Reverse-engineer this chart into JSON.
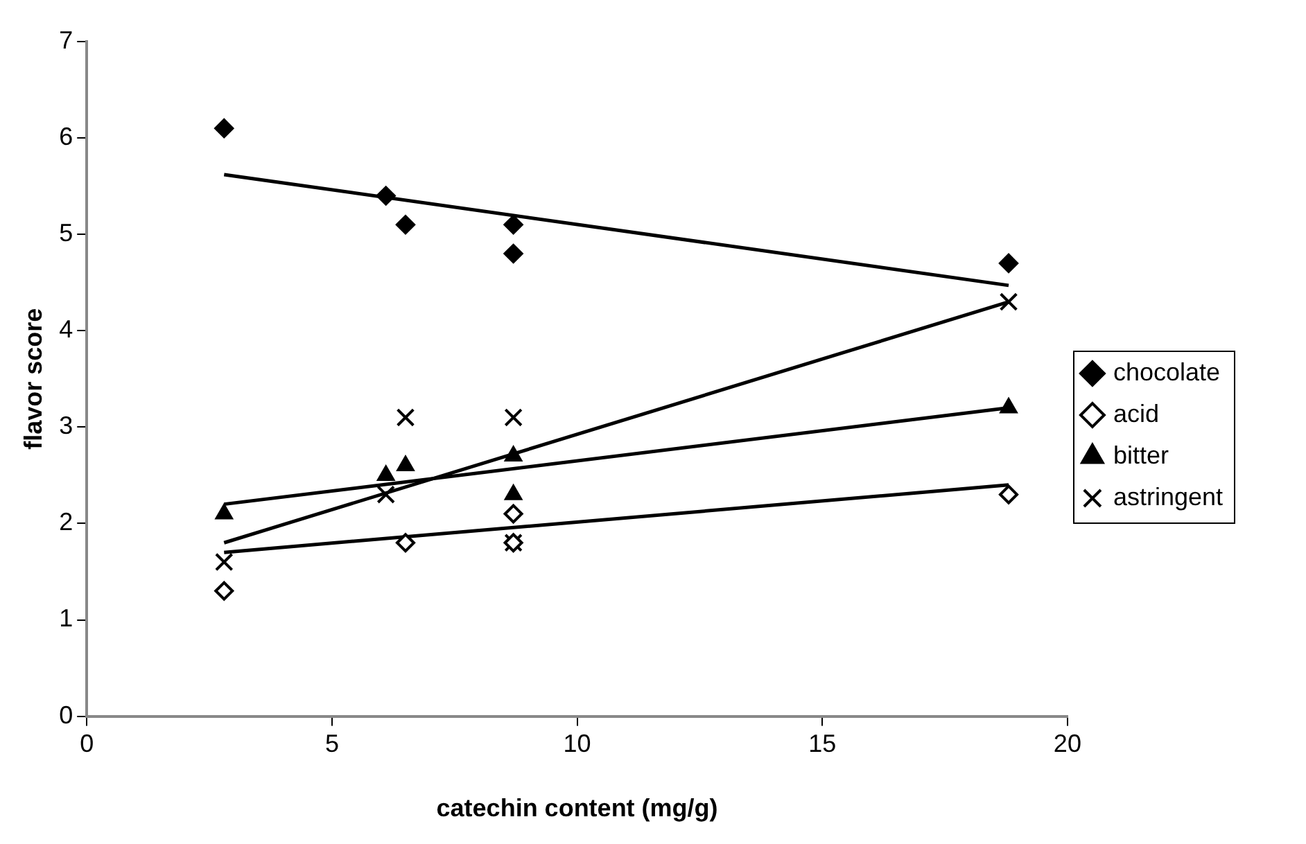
{
  "chart_data": {
    "type": "scatter",
    "xlabel": "catechin content (mg/g)",
    "ylabel": "flavor score",
    "xlim": [
      0,
      20
    ],
    "xticks": [
      0,
      5,
      10,
      15,
      20
    ],
    "ylim": [
      0,
      7
    ],
    "yticks": [
      0,
      1,
      2,
      3,
      4,
      5,
      6,
      7
    ],
    "legend": "right",
    "series": [
      {
        "name": "chocolate",
        "color": "#000000",
        "marker": "diamond",
        "x": [
          2.8,
          6.1,
          6.5,
          8.7,
          8.7,
          18.8
        ],
        "values": [
          6.1,
          5.4,
          5.1,
          5.1,
          4.8,
          4.7
        ]
      },
      {
        "name": "acid",
        "color": "#000000",
        "marker": "diamond",
        "x": [
          2.8,
          6.5,
          8.7,
          8.7,
          18.8
        ],
        "values": [
          1.3,
          1.8,
          2.1,
          1.8,
          2.3
        ]
      },
      {
        "name": "bitter",
        "color": "#000000",
        "marker": "triangle",
        "x": [
          2.8,
          6.1,
          6.5,
          8.7,
          8.7,
          18.8
        ],
        "values": [
          2.1,
          2.5,
          2.6,
          2.7,
          2.3,
          3.2
        ]
      },
      {
        "name": "astringent",
        "color": "#000000",
        "marker": "cross",
        "x": [
          2.8,
          6.1,
          6.5,
          8.7,
          8.7,
          18.8
        ],
        "values": [
          1.6,
          2.3,
          3.1,
          3.1,
          1.8,
          4.3
        ]
      },
      {
        "type": "line",
        "color": "#000000",
        "marker": "none",
        "x": [
          2.8,
          18.8
        ],
        "values": [
          5.62,
          4.47
        ]
      },
      {
        "type": "line",
        "color": "#000000",
        "marker": "none",
        "x": [
          2.8,
          18.8
        ],
        "values": [
          1.7,
          2.4
        ]
      },
      {
        "type": "line",
        "color": "#000000",
        "marker": "none",
        "x": [
          2.8,
          18.8
        ],
        "values": [
          2.2,
          3.2
        ]
      },
      {
        "type": "line",
        "color": "#000000",
        "marker": "none",
        "x": [
          2.8,
          18.8
        ],
        "values": [
          1.8,
          4.3
        ]
      }
    ]
  }
}
